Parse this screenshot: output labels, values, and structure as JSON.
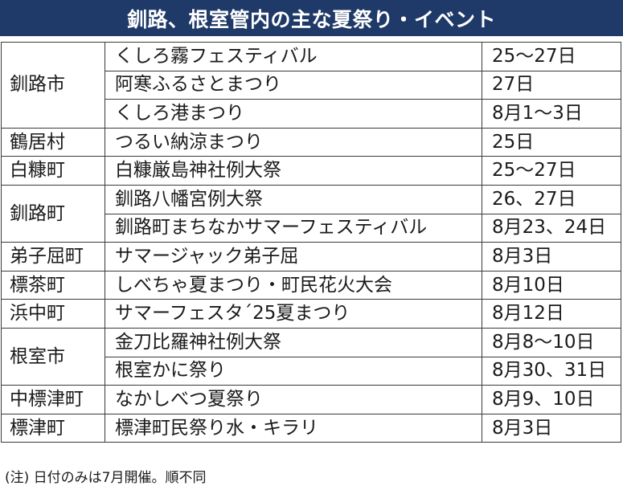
{
  "title": "釧路、根室管内の主な夏祭り・イベント",
  "municipalities": [
    {
      "name": "釧路市",
      "events": [
        {
          "name": "くしろ霧フェスティバル",
          "date": "25〜27日"
        },
        {
          "name": "阿寒ふるさとまつり",
          "date": "27日"
        },
        {
          "name": "くしろ港まつり",
          "date": "8月1〜3日"
        }
      ]
    },
    {
      "name": "鶴居村",
      "events": [
        {
          "name": "つるい納涼まつり",
          "date": "25日"
        }
      ]
    },
    {
      "name": "白糠町",
      "events": [
        {
          "name": "白糠厳島神社例大祭",
          "date": "25〜27日"
        }
      ]
    },
    {
      "name": "釧路町",
      "events": [
        {
          "name": "釧路八幡宮例大祭",
          "date": "26、27日"
        },
        {
          "name": "釧路町まちなかサマーフェスティバル",
          "date": "8月23、24日"
        }
      ]
    },
    {
      "name": "弟子屈町",
      "events": [
        {
          "name": "サマージャック弟子屈",
          "date": "8月3日"
        }
      ]
    },
    {
      "name": "標茶町",
      "events": [
        {
          "name": "しべちゃ夏まつり・町民花火大会",
          "date": "8月10日"
        }
      ]
    },
    {
      "name": "浜中町",
      "events": [
        {
          "name": "サマーフェスタ´25夏まつり",
          "date": "8月12日"
        }
      ]
    },
    {
      "name": "根室市",
      "events": [
        {
          "name": "金刀比羅神社例大祭",
          "date": "8月8〜10日"
        },
        {
          "name": "根室かに祭り",
          "date": "8月30、31日"
        }
      ]
    },
    {
      "name": "中標津町",
      "events": [
        {
          "name": "なかしべつ夏祭り",
          "date": "8月9、10日"
        }
      ]
    },
    {
      "name": "標津町",
      "events": [
        {
          "name": "標津町民祭り水・キラリ",
          "date": "8月3日"
        }
      ]
    }
  ],
  "note": "(注) 日付のみは7月開催。順不同",
  "colors": {
    "title_background": "#1f3a68",
    "title_text": "#ffffff",
    "border": "#3a3a3a",
    "text": "#1a1a1a"
  }
}
